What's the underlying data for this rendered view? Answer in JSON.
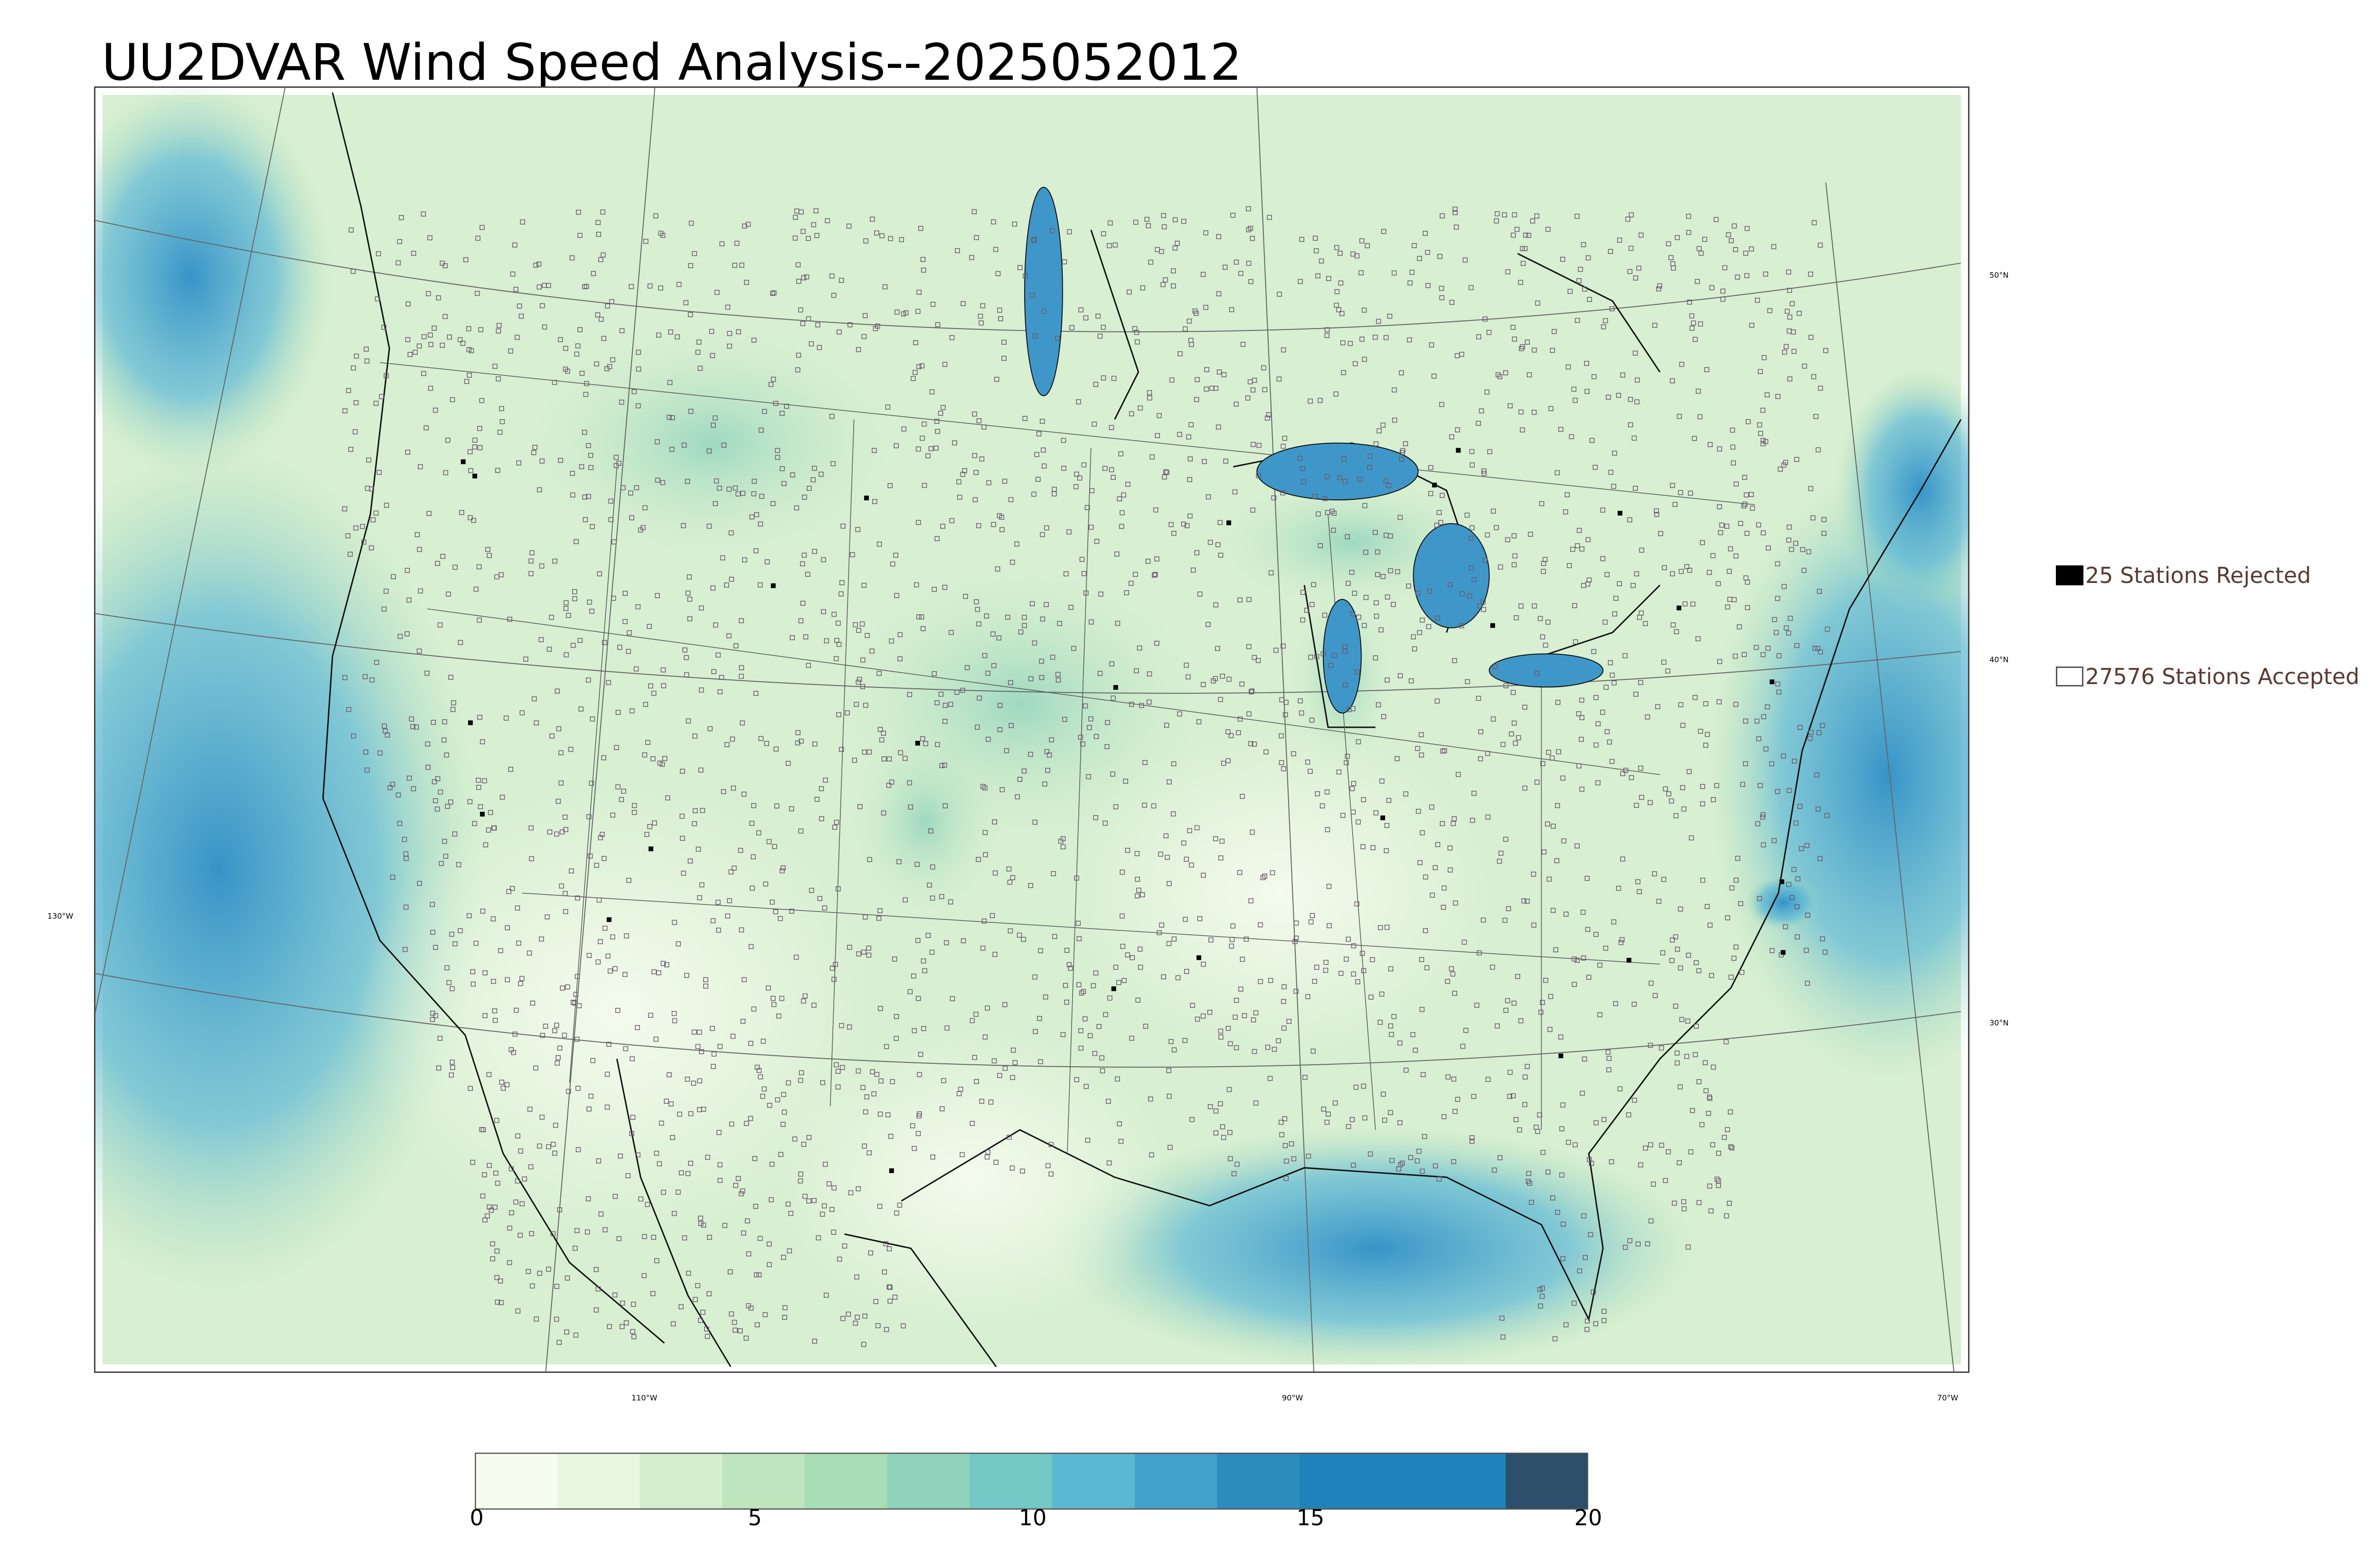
{
  "title": "UU2DVAR Wind Speed Analysis--2025052012",
  "latitude_labels": [
    "50°N",
    "40°N",
    "30°N"
  ],
  "longitude_labels": [
    "130°W",
    "110°W",
    "90°W",
    "70°W"
  ],
  "legend": {
    "rejected": {
      "label": "25 Stations Rejected",
      "swatch": "#000000"
    },
    "accepted": {
      "label": "27576 Stations Accepted",
      "swatch": "#ffffff"
    }
  },
  "colorbar": {
    "min": 0,
    "max": 20,
    "ticks": [
      "0",
      "5",
      "10",
      "15",
      "20"
    ],
    "colors": [
      "#f7fcf0",
      "#e8f6e2",
      "#d4eece",
      "#bfe5bf",
      "#a8ddb5",
      "#8fd3bc",
      "#74c8c6",
      "#5ab8d2",
      "#43a2ca",
      "#2b8cbe",
      "#1f83bb",
      "#2c4f6b"
    ]
  },
  "colors": {
    "land_background": "#e6f4e0",
    "ocean_wind": "#4aa8d6",
    "coastline": "#111111",
    "station_marker": "#6b5a6b"
  }
}
